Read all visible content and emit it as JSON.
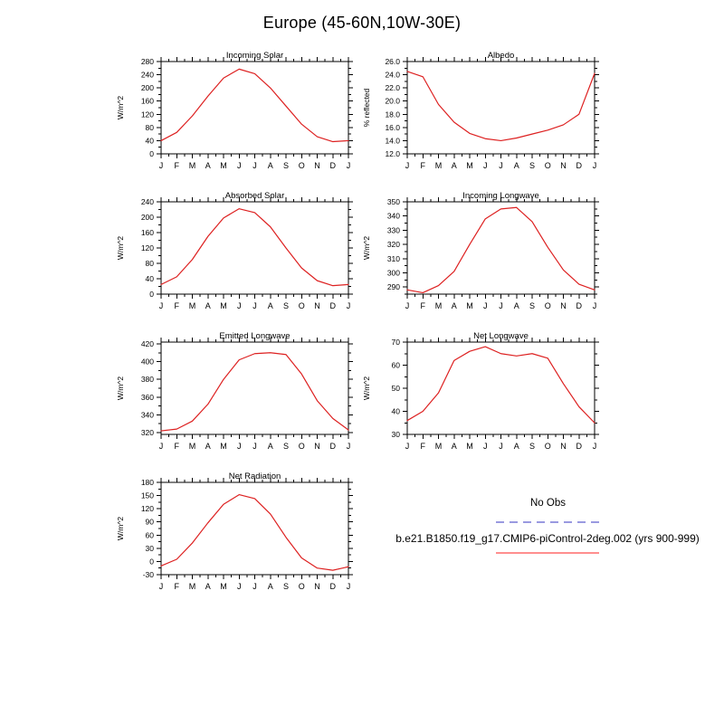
{
  "page_title": "Europe (45-60N,10W-30E)",
  "months": [
    "J",
    "F",
    "M",
    "A",
    "M",
    "J",
    "J",
    "A",
    "S",
    "O",
    "N",
    "D",
    "J"
  ],
  "colors": {
    "series_line": "#dd2020",
    "axis": "#000000",
    "no_obs_line": "#9a9ae0",
    "model_line": "#ff8f8f"
  },
  "legend": {
    "no_obs_label": "No Obs",
    "model_label": "b.e21.B1850.f19_g17.CMIP6-piControl-2deg.002 (yrs 900-999)"
  },
  "chart_data": [
    {
      "id": "incoming-solar",
      "type": "line",
      "title": "Incoming Solar",
      "ylabel": "W/m^2",
      "ylim": [
        0,
        280
      ],
      "yticks": [
        0,
        40,
        80,
        120,
        160,
        200,
        240,
        280
      ],
      "decimals": 0,
      "x_tick_labels": "months",
      "values": [
        40,
        65,
        115,
        175,
        230,
        257,
        243,
        200,
        145,
        90,
        52,
        37,
        40
      ]
    },
    {
      "id": "albedo",
      "type": "line",
      "title": "Albedo",
      "ylabel": "% reflected",
      "ylim": [
        12,
        26
      ],
      "yticks": [
        12,
        14,
        16,
        18,
        20,
        22,
        24,
        26
      ],
      "decimals": 1,
      "x_tick_labels": "months",
      "values": [
        24.5,
        23.7,
        19.5,
        16.8,
        15.1,
        14.3,
        14.0,
        14.4,
        15.0,
        15.6,
        16.4,
        18.0,
        24.2
      ]
    },
    {
      "id": "absorbed-solar",
      "type": "line",
      "title": "Absorbed Solar",
      "ylabel": "W/m^2",
      "ylim": [
        0,
        240
      ],
      "yticks": [
        0,
        40,
        80,
        120,
        160,
        200,
        240
      ],
      "decimals": 0,
      "x_tick_labels": "months",
      "values": [
        25,
        45,
        90,
        150,
        198,
        222,
        212,
        175,
        120,
        68,
        35,
        22,
        25
      ]
    },
    {
      "id": "incoming-longwave",
      "type": "line",
      "title": "Incoming Longwave",
      "ylabel": "W/m^2",
      "ylim": [
        285,
        350
      ],
      "yticks": [
        290,
        300,
        310,
        320,
        330,
        340,
        350
      ],
      "decimals": 0,
      "x_tick_labels": "months",
      "values": [
        288,
        286,
        291,
        301,
        320,
        338,
        345,
        346,
        336,
        318,
        302,
        292,
        288
      ]
    },
    {
      "id": "emitted-longwave",
      "type": "line",
      "title": "Emitted Longwave",
      "ylabel": "W/m^2",
      "ylim": [
        318,
        422
      ],
      "yticks": [
        320,
        340,
        360,
        380,
        400,
        420
      ],
      "decimals": 0,
      "x_tick_labels": "months",
      "values": [
        322,
        324,
        333,
        352,
        380,
        402,
        409,
        410,
        408,
        386,
        356,
        336,
        323
      ]
    },
    {
      "id": "net-longwave",
      "type": "line",
      "title": "Net Longwave",
      "ylabel": "W/m^2",
      "ylim": [
        30,
        70
      ],
      "yticks": [
        30,
        40,
        50,
        60,
        70
      ],
      "decimals": 0,
      "x_tick_labels": "months",
      "values": [
        36,
        40,
        48,
        62,
        66,
        68,
        65,
        64,
        65,
        63,
        52,
        42,
        35
      ]
    },
    {
      "id": "net-radiation",
      "type": "line",
      "title": "Net Radiation",
      "ylabel": "W/m^2",
      "ylim": [
        -30,
        180
      ],
      "yticks": [
        -30,
        0,
        30,
        60,
        90,
        120,
        150,
        180
      ],
      "decimals": 0,
      "x_tick_labels": "months",
      "values": [
        -10,
        5,
        42,
        88,
        130,
        152,
        143,
        108,
        55,
        8,
        -15,
        -20,
        -12
      ]
    }
  ]
}
